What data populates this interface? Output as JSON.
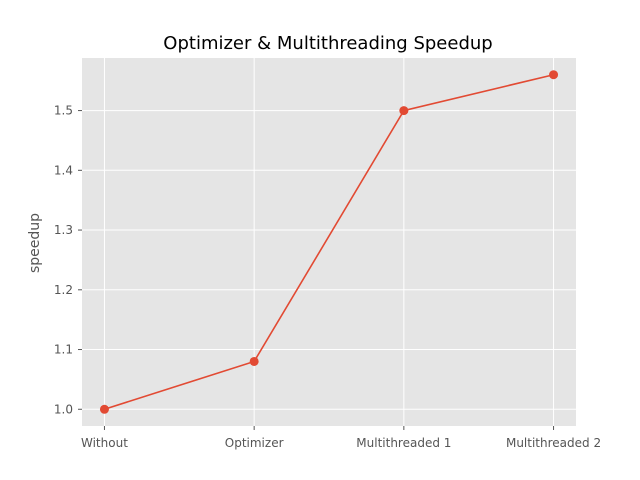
{
  "chart_data": {
    "type": "line",
    "title": "Optimizer & Multithreading Speedup",
    "xlabel": "",
    "ylabel": "speedup",
    "categories": [
      "Without",
      "Optimizer",
      "Multithreaded 1",
      "Multithreaded 2"
    ],
    "series": [
      {
        "values": [
          1.0,
          1.08,
          1.5,
          1.56
        ],
        "color": "#E24A33"
      }
    ],
    "ylim": [
      0.972,
      1.588
    ],
    "yticks": [
      1.0,
      1.1,
      1.2,
      1.3,
      1.4,
      1.5
    ],
    "ytick_labels": [
      "1.0",
      "1.1",
      "1.2",
      "1.3",
      "1.4",
      "1.5"
    ],
    "grid": true,
    "plot_background": "#E5E5E5",
    "grid_color": "#FFFFFF"
  }
}
